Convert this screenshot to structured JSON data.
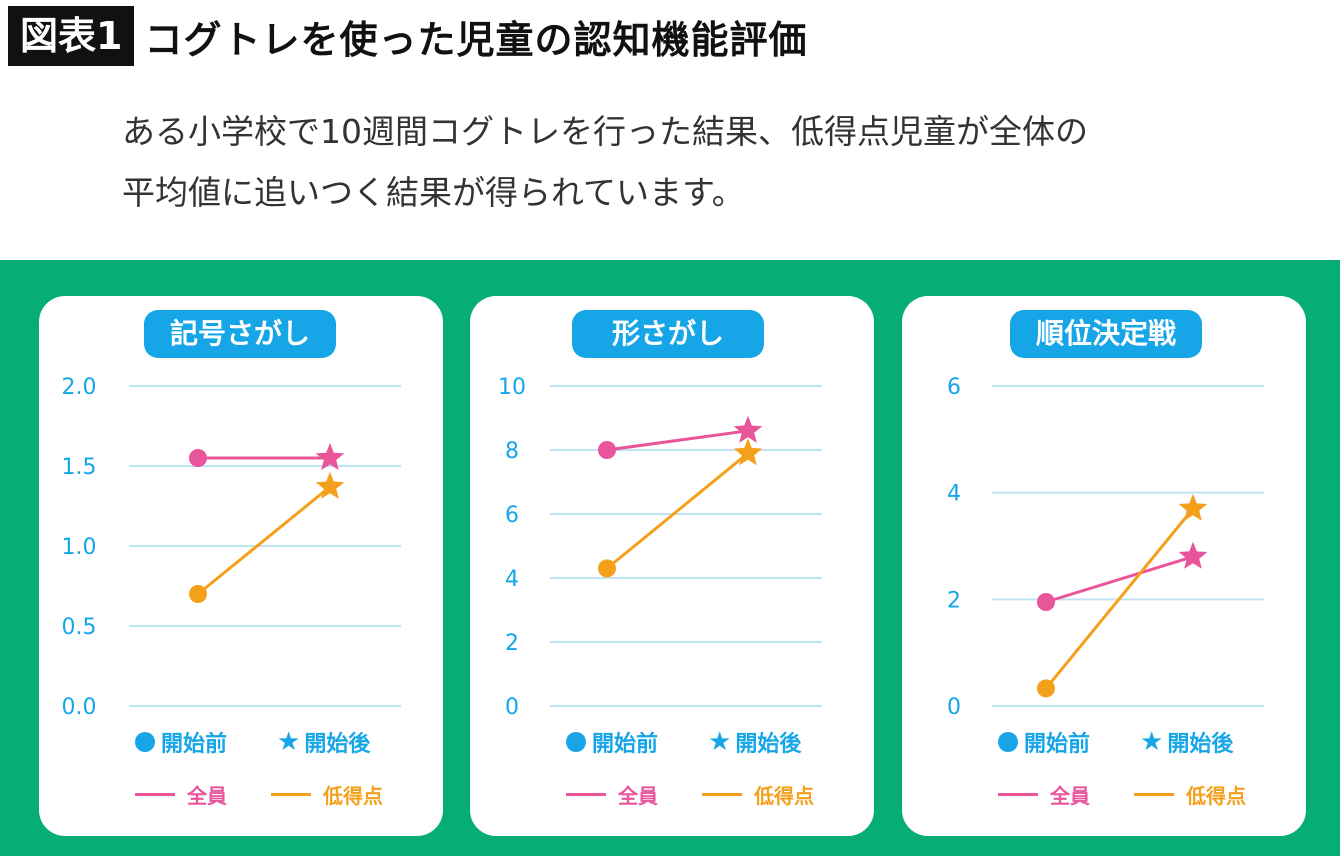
{
  "header": {
    "tag": "図表1",
    "title": "コグトレを使った児童の認知機能評価"
  },
  "description": {
    "line1": "ある小学校で10週間コグトレを行った結果、低得点児童が全体の",
    "line2": "平均値に追いつく結果が得られています。"
  },
  "legend": {
    "before": "開始前",
    "after": "開始後",
    "all": "全員",
    "low": "低得点"
  },
  "colors": {
    "all": "#e8559b",
    "low": "#f5a01a",
    "accent": "#16a6e8",
    "background": "#06ae74"
  },
  "chart_data": [
    {
      "type": "line",
      "title": "記号さがし",
      "categories": [
        "開始前",
        "開始後"
      ],
      "yticks": [
        "2.0",
        "1.5",
        "1.0",
        "0.5",
        "0.0"
      ],
      "ylim": [
        0,
        2
      ],
      "series": [
        {
          "name": "全員",
          "values": [
            1.55,
            1.55
          ]
        },
        {
          "name": "低得点",
          "values": [
            0.7,
            1.37
          ]
        }
      ],
      "grid": true
    },
    {
      "type": "line",
      "title": "形さがし",
      "categories": [
        "開始前",
        "開始後"
      ],
      "yticks": [
        "10",
        "8",
        "6",
        "4",
        "2",
        "0"
      ],
      "ylim": [
        0,
        10
      ],
      "series": [
        {
          "name": "全員",
          "values": [
            8.0,
            8.6
          ]
        },
        {
          "name": "低得点",
          "values": [
            4.3,
            7.9
          ]
        }
      ],
      "grid": true
    },
    {
      "type": "line",
      "title": "順位決定戦",
      "categories": [
        "開始前",
        "開始後"
      ],
      "yticks": [
        "6",
        "4",
        "2",
        "0"
      ],
      "ylim": [
        0,
        6
      ],
      "series": [
        {
          "name": "全員",
          "values": [
            1.95,
            2.8
          ]
        },
        {
          "name": "低得点",
          "values": [
            0.33,
            3.7
          ]
        }
      ],
      "grid": true
    }
  ]
}
